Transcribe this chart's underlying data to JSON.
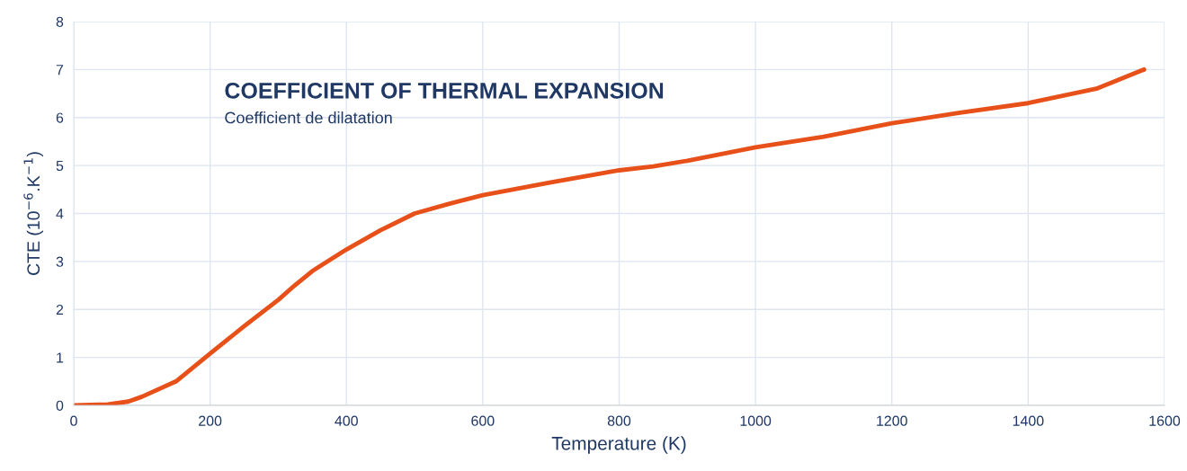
{
  "chart_data": {
    "type": "line",
    "title": "COEFFICIENT OF THERMAL EXPANSION",
    "subtitle": "Coefficient de dilatation",
    "xlabel": "Temperature (K)",
    "ylabel": "CTE (10$^{−6}$.K$^{−1}$)",
    "x": [
      0,
      50,
      80,
      100,
      150,
      200,
      250,
      300,
      320,
      350,
      400,
      450,
      500,
      550,
      600,
      700,
      800,
      850,
      900,
      1000,
      1100,
      1200,
      1300,
      1400,
      1500,
      1570
    ],
    "series": [
      {
        "color": "#e8501a",
        "values": [
          0,
          0.02,
          0.08,
          0.18,
          0.5,
          1.08,
          1.65,
          2.2,
          2.45,
          2.8,
          3.25,
          3.65,
          4.0,
          4.2,
          4.38,
          4.65,
          4.9,
          4.98,
          5.1,
          5.38,
          5.6,
          5.88,
          6.1,
          6.3,
          6.6,
          7.0
        ]
      }
    ],
    "xlim": [
      0,
      1600
    ],
    "xticks": [
      0,
      200,
      400,
      600,
      800,
      1000,
      1200,
      1400,
      1600
    ],
    "ylim": [
      0,
      8
    ],
    "yticks": [
      0,
      1,
      2,
      3,
      4,
      5,
      6,
      7,
      8
    ],
    "grid": true,
    "marker": "none",
    "line_style": "solid",
    "legend": false
  }
}
